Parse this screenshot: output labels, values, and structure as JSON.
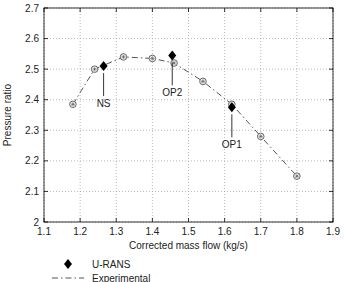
{
  "chart_data": {
    "type": "line",
    "x_label": "Corrected mass flow (kg/s)",
    "y_label": "Pressure ratio",
    "xlim": [
      1.1,
      1.9
    ],
    "ylim": [
      2,
      2.7
    ],
    "xticks": [
      1.1,
      1.2,
      1.3,
      1.4,
      1.5,
      1.6,
      1.7,
      1.8,
      1.9
    ],
    "yticks": [
      2,
      2.1,
      2.2,
      2.3,
      2.4,
      2.5,
      2.6,
      2.7
    ],
    "grid": true,
    "legend": "bottom",
    "series": [
      {
        "name": "U-RANS",
        "type": "scatter",
        "marker": "diamond",
        "color": "#000000",
        "x": [
          1.265,
          1.455,
          1.62
        ],
        "values": [
          2.51,
          2.545,
          2.375
        ]
      },
      {
        "name": "Experimental",
        "type": "line",
        "marker": "circle",
        "line_style": "dashdot",
        "color": "#555555",
        "x": [
          1.18,
          1.24,
          1.32,
          1.4,
          1.46,
          1.54,
          1.62,
          1.7,
          1.8
        ],
        "values": [
          2.385,
          2.5,
          2.54,
          2.535,
          2.52,
          2.46,
          2.385,
          2.28,
          2.15
        ]
      }
    ],
    "annotations": [
      {
        "text": "NS",
        "x": 1.265,
        "y": 2.51
      },
      {
        "text": "OP2",
        "x": 1.455,
        "y": 2.545
      },
      {
        "text": "OP1",
        "x": 1.62,
        "y": 2.375
      }
    ]
  }
}
